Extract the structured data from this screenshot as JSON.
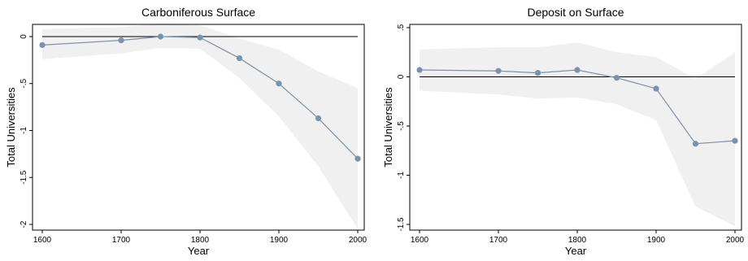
{
  "colors": {
    "band": "#f0f0f0",
    "series": "#7a93ad",
    "reference": "#000000"
  },
  "chart_data": [
    {
      "type": "line",
      "title": "Carboniferous Surface",
      "xlabel": "Year",
      "ylabel": "Total Universities",
      "xlim": [
        1600,
        2000
      ],
      "ylim": [
        -2,
        0
      ],
      "xticks": [
        1600,
        1700,
        1800,
        1900,
        2000
      ],
      "yticks": [
        0,
        -0.5,
        -1,
        -1.5,
        -2
      ],
      "ytick_labels": [
        "0",
        "-.5",
        "-1",
        "-1.5",
        "-2"
      ],
      "reference_line": 0,
      "grid": false,
      "series": [
        {
          "x": [
            1600,
            1700,
            1750,
            1800,
            1850,
            1900,
            1950,
            2000
          ],
          "values": [
            -0.09,
            -0.04,
            0.0,
            -0.01,
            -0.23,
            -0.5,
            -0.87,
            -1.3
          ],
          "ci_upper": [
            0.08,
            0.1,
            0.14,
            0.12,
            -0.02,
            -0.14,
            -0.37,
            -0.55
          ],
          "ci_lower": [
            -0.24,
            -0.18,
            -0.12,
            -0.13,
            -0.44,
            -0.85,
            -1.38,
            -2.05
          ]
        }
      ]
    },
    {
      "type": "line",
      "title": "Deposit on Surface",
      "xlabel": "Year",
      "ylabel": "Total Universities",
      "xlim": [
        1600,
        2000
      ],
      "ylim": [
        -1.5,
        0.5
      ],
      "xticks": [
        1600,
        1700,
        1800,
        1900,
        2000
      ],
      "yticks": [
        0.5,
        0,
        -0.5,
        -1,
        -1.5
      ],
      "ytick_labels": [
        ".5",
        "0",
        "-.5",
        "-1",
        "-1.5"
      ],
      "reference_line": 0,
      "grid": false,
      "series": [
        {
          "x": [
            1600,
            1700,
            1750,
            1800,
            1850,
            1900,
            1950,
            2000
          ],
          "values": [
            0.07,
            0.06,
            0.04,
            0.07,
            -0.01,
            -0.12,
            -0.68,
            -0.65
          ],
          "ci_upper": [
            0.28,
            0.3,
            0.3,
            0.35,
            0.25,
            0.2,
            -0.02,
            0.25
          ],
          "ci_lower": [
            -0.14,
            -0.18,
            -0.22,
            -0.21,
            -0.28,
            -0.44,
            -1.32,
            -1.52
          ]
        }
      ]
    }
  ]
}
